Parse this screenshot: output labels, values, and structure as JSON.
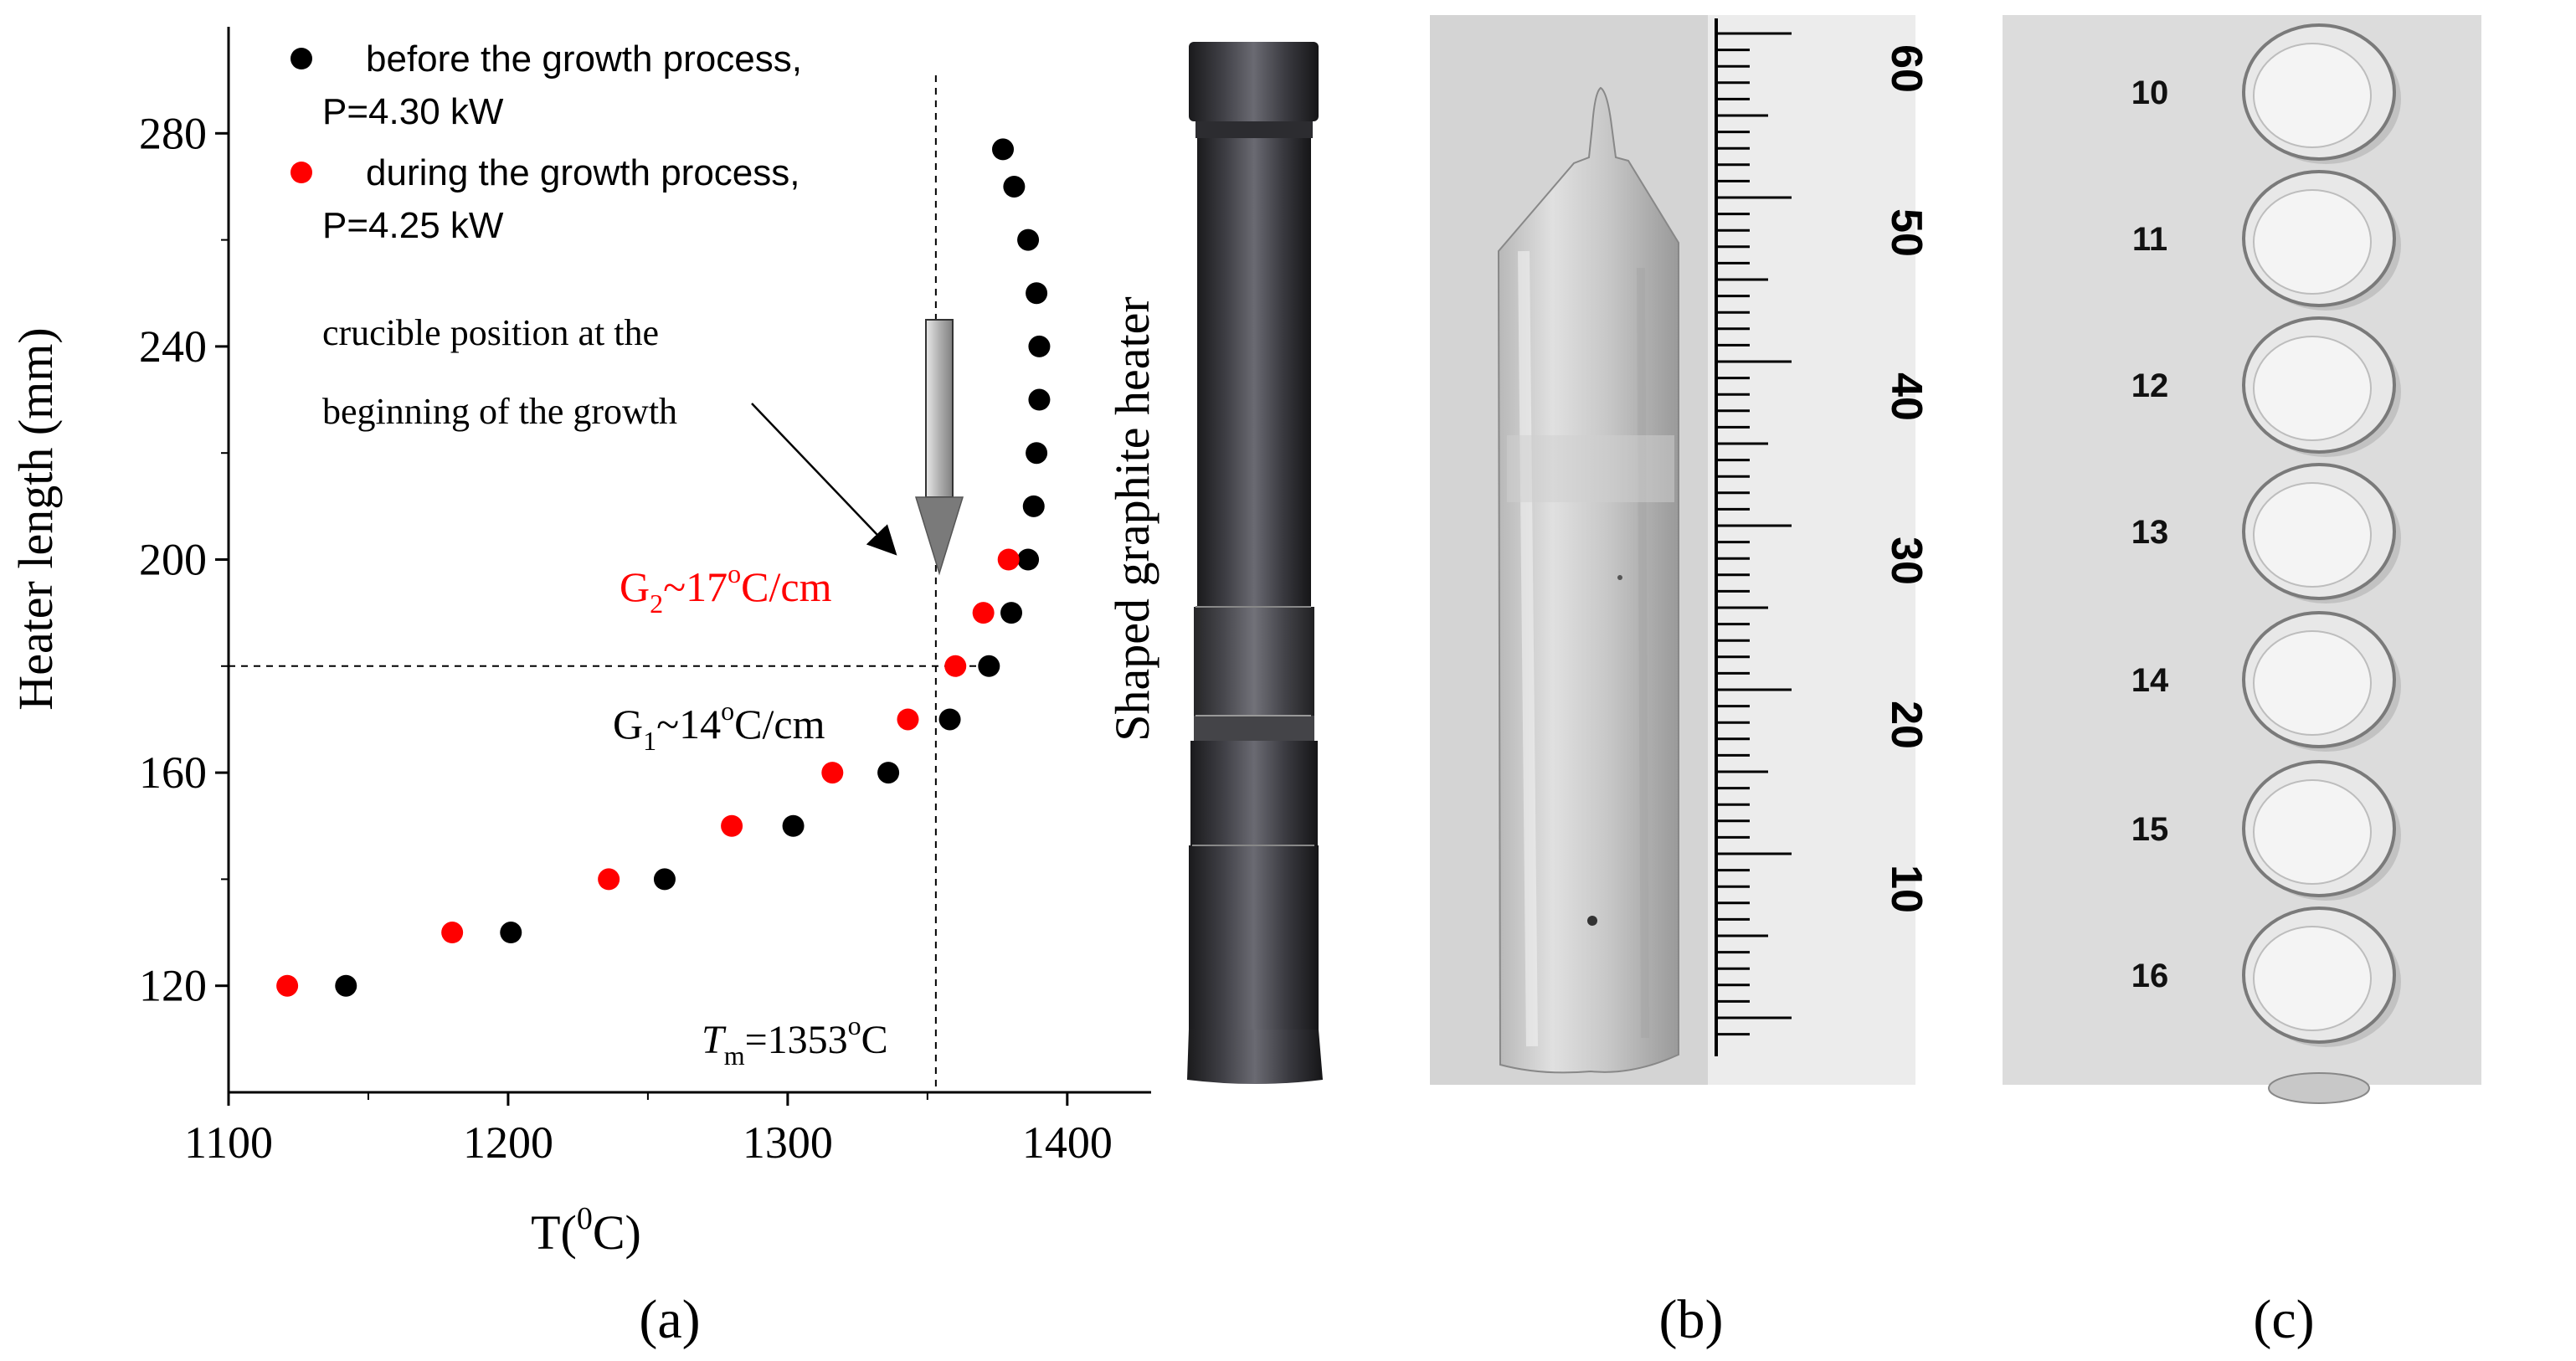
{
  "chart_data": {
    "type": "scatter",
    "xlabel": "T(",
    "xlabel_sup": "0",
    "xlabel_end": "C)",
    "ylabel": "Heater length (mm)",
    "xlim": [
      1100,
      1430
    ],
    "ylim": [
      100,
      300
    ],
    "x_ticks": [
      1100,
      1200,
      1300,
      1400
    ],
    "y_ticks": [
      120,
      160,
      200,
      240,
      280
    ],
    "series": [
      {
        "name_line1": "before the growth process,",
        "name_line2": "P=4.30 kW",
        "color": "#000000",
        "points": [
          [
            1142,
            120
          ],
          [
            1201,
            130
          ],
          [
            1256,
            140
          ],
          [
            1302,
            150
          ],
          [
            1336,
            160
          ],
          [
            1358,
            170
          ],
          [
            1372,
            180
          ],
          [
            1380,
            190
          ],
          [
            1386,
            200
          ],
          [
            1388,
            210
          ],
          [
            1389,
            220
          ],
          [
            1390,
            230
          ],
          [
            1390,
            240
          ],
          [
            1389,
            250
          ],
          [
            1386,
            260
          ],
          [
            1381,
            270
          ],
          [
            1377,
            277
          ]
        ]
      },
      {
        "name_line1": "during the growth process,",
        "name_line2": "P=4.25 kW",
        "color": "#ff0000",
        "points": [
          [
            1121,
            120
          ],
          [
            1180,
            130
          ],
          [
            1236,
            140
          ],
          [
            1280,
            150
          ],
          [
            1316,
            160
          ],
          [
            1343,
            170
          ],
          [
            1360,
            180
          ],
          [
            1370,
            190
          ],
          [
            1379,
            200
          ]
        ]
      }
    ],
    "reference_lines": {
      "x": 1353,
      "y": 180
    },
    "annotations": {
      "crucible_line1": "crucible position at the",
      "crucible_line2": "beginning of the growth",
      "g2_prefix": "G",
      "g2_sub": "2",
      "g2_mid": "~17",
      "g2_sup": "o",
      "g2_end": "C/cm",
      "g1_prefix": "G",
      "g1_sub": "1",
      "g1_mid": "~14",
      "g1_sup": "o",
      "g1_end": "C/cm",
      "tm_prefix": "T",
      "tm_sub": "m",
      "tm_mid": "=1353",
      "tm_sup": "o",
      "tm_end": "C"
    },
    "grid": false,
    "legend_position": "top-left"
  },
  "photos": {
    "heater_label": "Shaped graphite heater",
    "ruler_numbers": [
      "60",
      "50",
      "40",
      "30",
      "20",
      "10"
    ],
    "disk_numbers": [
      "10",
      "11",
      "12",
      "13",
      "14",
      "15",
      "16"
    ]
  },
  "panel_labels": [
    "(a)",
    "(b)",
    "(c)"
  ],
  "colors": {
    "series_before": "#000000",
    "series_during": "#ff0000",
    "g2_text": "#ff0000",
    "heater_dark": "#2a2a2e",
    "photo_bg_b": "#d4d4d4",
    "photo_bg_c": "#dcdcdc"
  }
}
